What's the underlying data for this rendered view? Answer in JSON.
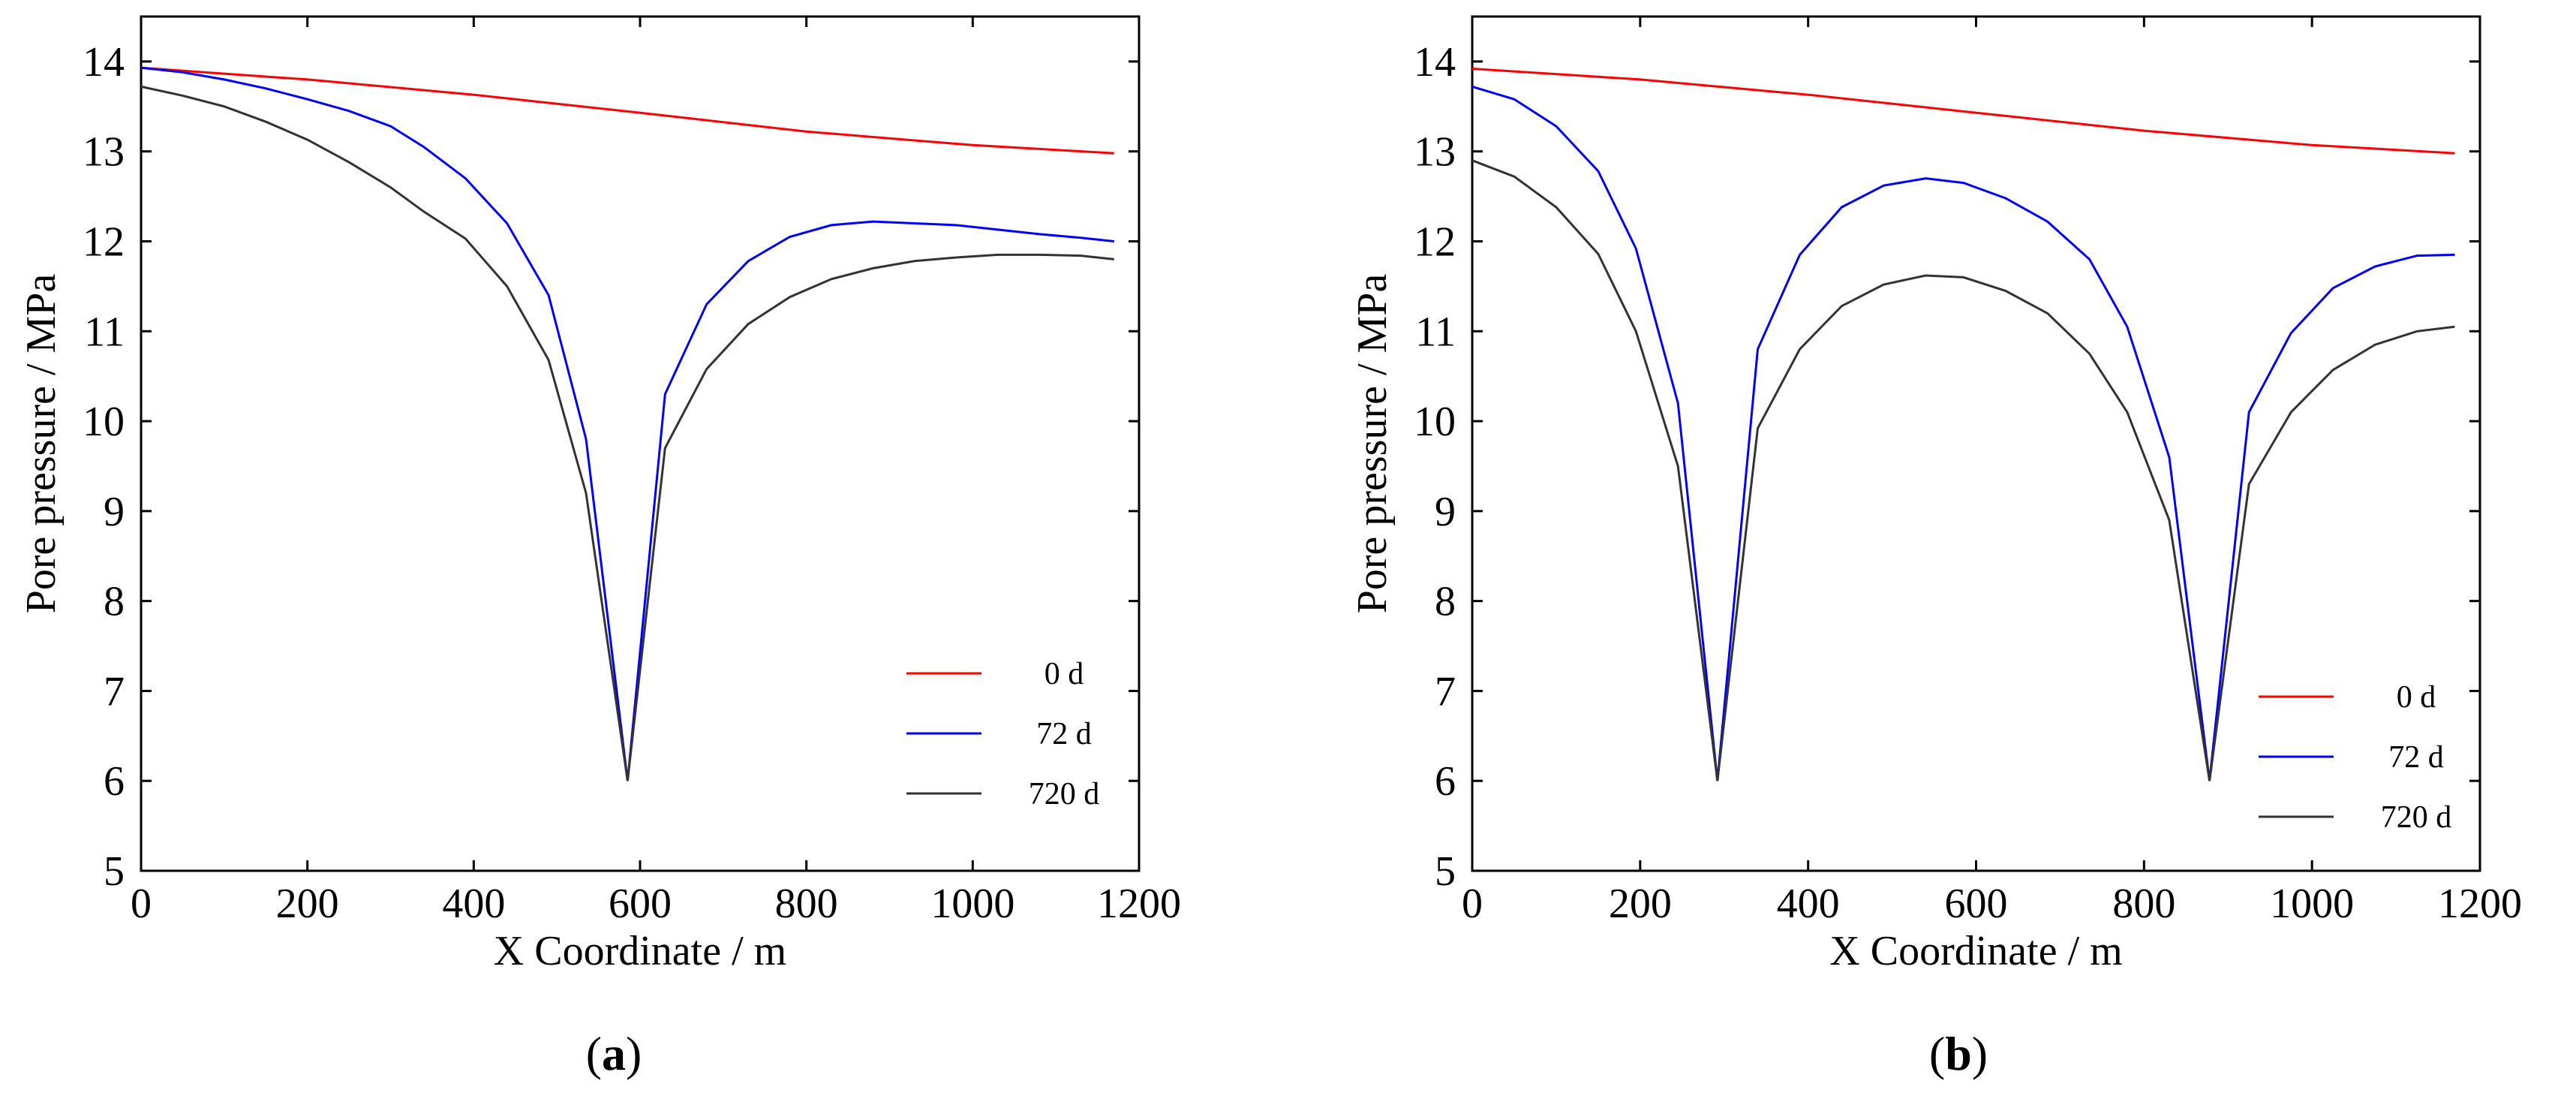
{
  "chart_data": [
    {
      "type": "line",
      "panel_label": "(a)",
      "panel_letter": "a",
      "xlabel": "X Coordinate / m",
      "ylabel": "Pore pressure / MPa",
      "xlim": [
        0,
        1200
      ],
      "ylim": [
        5,
        14.5
      ],
      "xticks": [
        0,
        200,
        400,
        600,
        800,
        1000,
        1200
      ],
      "yticks": [
        5,
        6,
        7,
        8,
        9,
        10,
        11,
        12,
        13,
        14
      ],
      "legend_position": "lower-right",
      "series": [
        {
          "name": "0 d",
          "color": "#ff0000",
          "x": [
            0,
            200,
            400,
            600,
            800,
            1000,
            1170
          ],
          "y": [
            13.93,
            13.8,
            13.63,
            13.43,
            13.22,
            13.07,
            12.98
          ]
        },
        {
          "name": "72 d",
          "color": "#0000ff",
          "x": [
            0,
            50,
            100,
            150,
            200,
            250,
            300,
            340,
            390,
            440,
            490,
            535,
            585,
            630,
            680,
            730,
            780,
            830,
            880,
            930,
            980,
            1030,
            1080,
            1130,
            1170
          ],
          "y": [
            13.93,
            13.88,
            13.8,
            13.7,
            13.58,
            13.45,
            13.28,
            13.05,
            12.7,
            12.2,
            11.4,
            9.8,
            6.0,
            10.3,
            11.3,
            11.78,
            12.05,
            12.18,
            12.22,
            12.2,
            12.18,
            12.13,
            12.08,
            12.04,
            12.0
          ]
        },
        {
          "name": "720 d",
          "color": "#333333",
          "x": [
            0,
            50,
            100,
            150,
            200,
            250,
            300,
            340,
            390,
            440,
            490,
            535,
            585,
            630,
            680,
            730,
            780,
            830,
            880,
            930,
            980,
            1030,
            1080,
            1130,
            1170
          ],
          "y": [
            13.72,
            13.62,
            13.5,
            13.33,
            13.13,
            12.88,
            12.6,
            12.33,
            12.03,
            11.5,
            10.68,
            9.2,
            6.0,
            9.7,
            10.58,
            11.08,
            11.38,
            11.58,
            11.7,
            11.78,
            11.82,
            11.85,
            11.85,
            11.84,
            11.8
          ]
        }
      ]
    },
    {
      "type": "line",
      "panel_label": "(b)",
      "panel_letter": "b",
      "xlabel": "X Coordinate / m",
      "ylabel": "Pore pressure / MPa",
      "xlim": [
        0,
        1200
      ],
      "ylim": [
        5,
        14.5
      ],
      "xticks": [
        0,
        200,
        400,
        600,
        800,
        1000,
        1200
      ],
      "yticks": [
        5,
        6,
        7,
        8,
        9,
        10,
        11,
        12,
        13,
        14
      ],
      "legend_position": "lower-right",
      "series": [
        {
          "name": "0 d",
          "color": "#ff0000",
          "x": [
            0,
            200,
            400,
            600,
            800,
            1000,
            1170
          ],
          "y": [
            13.92,
            13.8,
            13.63,
            13.43,
            13.23,
            13.07,
            12.98
          ]
        },
        {
          "name": "72 d",
          "color": "#0000ff",
          "x": [
            0,
            50,
            100,
            150,
            195,
            245,
            292,
            340,
            390,
            440,
            490,
            540,
            585,
            635,
            685,
            735,
            780,
            830,
            878,
            925,
            975,
            1025,
            1075,
            1125,
            1170
          ],
          "y": [
            13.72,
            13.58,
            13.28,
            12.78,
            11.92,
            10.2,
            6.0,
            10.8,
            11.85,
            12.38,
            12.62,
            12.7,
            12.65,
            12.48,
            12.22,
            11.8,
            11.05,
            9.6,
            6.0,
            10.1,
            10.98,
            11.48,
            11.72,
            11.84,
            11.85
          ]
        },
        {
          "name": "720 d",
          "color": "#333333",
          "x": [
            0,
            50,
            100,
            150,
            195,
            245,
            292,
            340,
            390,
            440,
            490,
            540,
            585,
            635,
            685,
            735,
            780,
            830,
            878,
            925,
            975,
            1025,
            1075,
            1125,
            1170
          ],
          "y": [
            12.9,
            12.72,
            12.38,
            11.86,
            11.0,
            9.5,
            6.0,
            9.92,
            10.8,
            11.28,
            11.52,
            11.62,
            11.6,
            11.45,
            11.2,
            10.75,
            10.1,
            8.9,
            6.0,
            9.3,
            10.1,
            10.57,
            10.85,
            11.0,
            11.05
          ]
        }
      ]
    }
  ]
}
